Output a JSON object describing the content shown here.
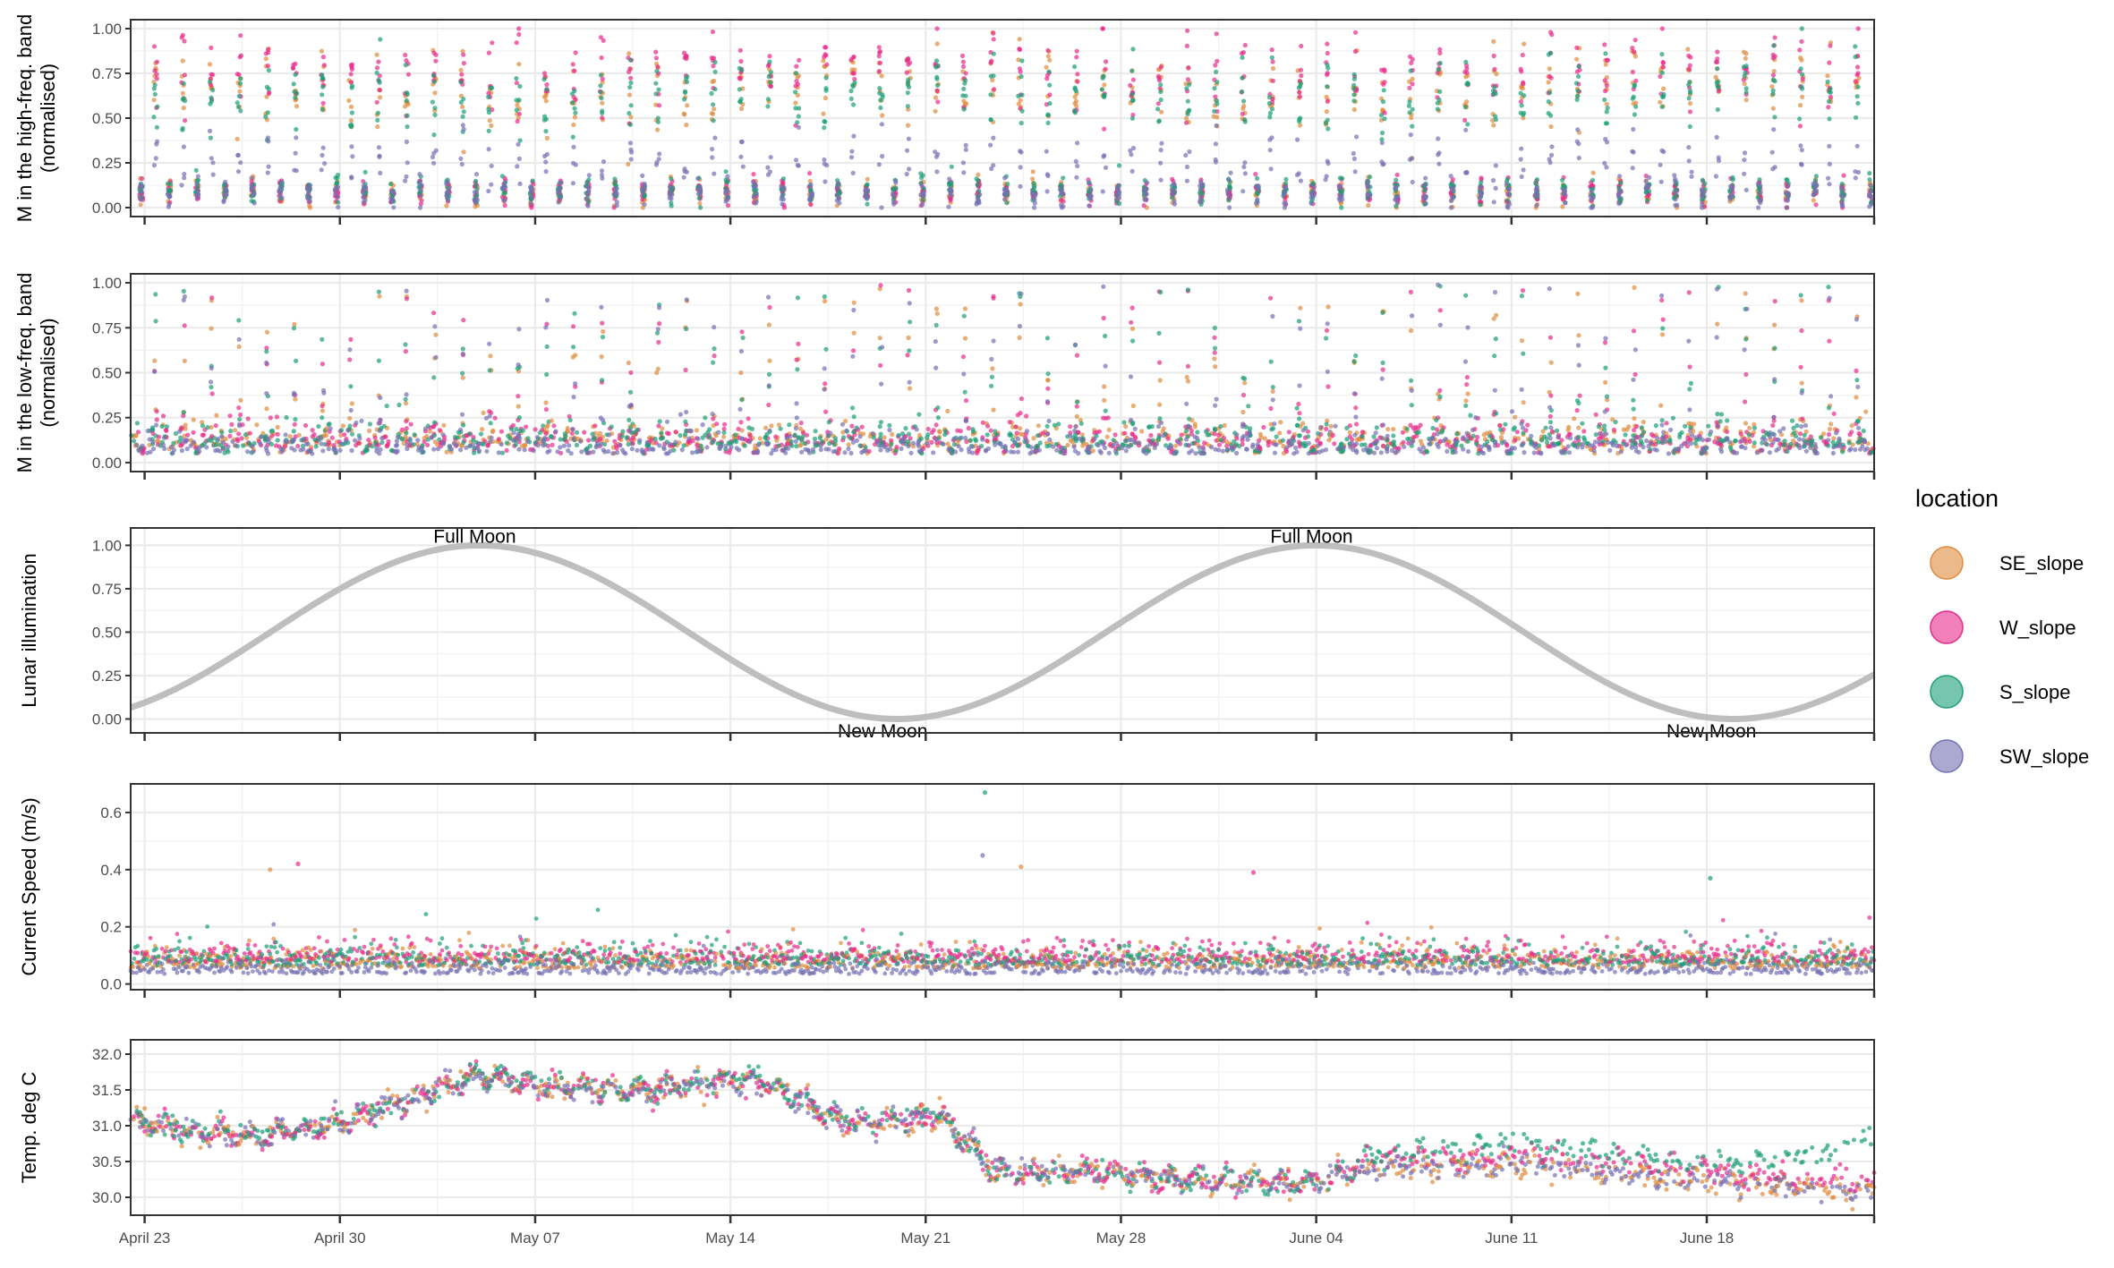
{
  "chart_data": {
    "type": "scatter",
    "x_axis": {
      "range": [
        "2024-04-22T12:00",
        "2024-06-24T00:00"
      ],
      "ticks": [
        {
          "label": "April 23",
          "date": "2024-04-23"
        },
        {
          "label": "April 30",
          "date": "2024-04-30"
        },
        {
          "label": "May 07",
          "date": "2024-05-07"
        },
        {
          "label": "May 14",
          "date": "2024-05-14"
        },
        {
          "label": "May 21",
          "date": "2024-05-21"
        },
        {
          "label": "May 28",
          "date": "2024-05-28"
        },
        {
          "label": "June 04",
          "date": "2024-06-04"
        },
        {
          "label": "June 11",
          "date": "2024-06-11"
        },
        {
          "label": "June 18",
          "date": "2024-06-18"
        }
      ]
    },
    "legend": {
      "title": "location",
      "position": "right",
      "entries": [
        {
          "name": "SE_slope",
          "color": "#E08A3C"
        },
        {
          "name": "W_slope",
          "color": "#E7298A"
        },
        {
          "name": "S_slope",
          "color": "#1B9E77"
        },
        {
          "name": "SW_slope",
          "color": "#7570B3"
        }
      ]
    },
    "panels": [
      {
        "id": "high",
        "ylabel": [
          "M in the high-freq. band",
          "(normalised)"
        ],
        "ylim": [
          -0.05,
          1.05
        ],
        "yticks": [
          {
            "value": 0,
            "label": "0.00"
          },
          {
            "value": 0.25,
            "label": "0.25"
          },
          {
            "value": 0.5,
            "label": "0.50"
          },
          {
            "value": 0.75,
            "label": "0.75"
          },
          {
            "value": 1,
            "label": "1.00"
          }
        ],
        "grid": true,
        "daily_pattern": {
          "night_values": {
            "SE_slope": 0.7,
            "W_slope": 0.78,
            "S_slope": 0.65,
            "SW_slope": 0.28
          },
          "day_values": {
            "SE_slope": 0.08,
            "W_slope": 0.09,
            "S_slope": 0.1,
            "SW_slope": 0.08
          }
        }
      },
      {
        "id": "low",
        "ylabel": [
          "M in the low-freq. band",
          "(normalised)"
        ],
        "ylim": [
          -0.05,
          1.05
        ],
        "yticks": [
          {
            "value": 0,
            "label": "0.00"
          },
          {
            "value": 0.25,
            "label": "0.25"
          },
          {
            "value": 0.5,
            "label": "0.50"
          },
          {
            "value": 0.75,
            "label": "0.75"
          },
          {
            "value": 1,
            "label": "1.00"
          }
        ],
        "grid": true,
        "typical_range": [
          0.0,
          0.3
        ],
        "spike_max": 1.0
      },
      {
        "id": "lunar",
        "ylabel": [
          "Lunar illumination"
        ],
        "ylim": [
          -0.08,
          1.1
        ],
        "yticks": [
          {
            "value": 0,
            "label": "0.00"
          },
          {
            "value": 0.25,
            "label": "0.25"
          },
          {
            "value": 0.5,
            "label": "0.50"
          },
          {
            "value": 0.75,
            "label": "0.75"
          },
          {
            "value": 1,
            "label": "1.00"
          }
        ],
        "grid": true,
        "line_color": "#BEBEBE",
        "full_moons": [
          "2024-05-05T00:00",
          "2024-06-03T23:00"
        ],
        "new_moons": [
          "2024-05-20T01:00",
          "2024-06-18T10:00"
        ],
        "annotations": [
          {
            "text": "Full Moon",
            "date": "2024-05-04T20:00",
            "value": 1.05
          },
          {
            "text": "Full Moon",
            "date": "2024-06-03T20:00",
            "value": 1.05
          },
          {
            "text": "New Moon",
            "date": "2024-05-19T11:00",
            "value": -0.07
          },
          {
            "text": "New Moon",
            "date": "2024-06-18T04:00",
            "value": -0.07
          }
        ]
      },
      {
        "id": "current",
        "ylabel": [
          "Current Speed (m/s)"
        ],
        "ylim": [
          -0.02,
          0.7
        ],
        "yticks": [
          {
            "value": 0,
            "label": "0.0"
          },
          {
            "value": 0.2,
            "label": "0.2"
          },
          {
            "value": 0.4,
            "label": "0.4"
          },
          {
            "value": 0.6,
            "label": "0.6"
          }
        ],
        "grid": true,
        "typical_means": {
          "SE_slope": 0.07,
          "W_slope": 0.09,
          "S_slope": 0.08,
          "SW_slope": 0.05
        },
        "outliers": [
          {
            "date": "2024-04-27T12:00",
            "value": 0.4
          },
          {
            "date": "2024-04-28T12:00",
            "value": 0.42
          },
          {
            "date": "2024-05-23T03:00",
            "value": 0.67
          },
          {
            "date": "2024-05-23T01:00",
            "value": 0.45
          },
          {
            "date": "2024-05-24T10:00",
            "value": 0.41
          },
          {
            "date": "2024-06-01T18:00",
            "value": 0.39
          },
          {
            "date": "2024-06-18T03:00",
            "value": 0.37
          }
        ]
      },
      {
        "id": "temp",
        "ylabel": [
          "Temp. deg C"
        ],
        "ylim": [
          29.75,
          32.2
        ],
        "yticks": [
          {
            "value": 30.0,
            "label": "30.0"
          },
          {
            "value": 30.5,
            "label": "30.5"
          },
          {
            "value": 31.0,
            "label": "31.0"
          },
          {
            "value": 31.5,
            "label": "31.5"
          },
          {
            "value": 32.0,
            "label": "32.0"
          }
        ],
        "grid": true,
        "trend": [
          {
            "date": "2024-04-22T12:00",
            "value": 31.1
          },
          {
            "date": "2024-04-25T00:00",
            "value": 30.9
          },
          {
            "date": "2024-04-27T00:00",
            "value": 30.85
          },
          {
            "date": "2024-04-30T00:00",
            "value": 31.05
          },
          {
            "date": "2024-05-02T00:00",
            "value": 31.3
          },
          {
            "date": "2024-05-05T00:00",
            "value": 31.7
          },
          {
            "date": "2024-05-07T00:00",
            "value": 31.55
          },
          {
            "date": "2024-05-11T00:00",
            "value": 31.5
          },
          {
            "date": "2024-05-15T00:00",
            "value": 31.65
          },
          {
            "date": "2024-05-18T00:00",
            "value": 31.05
          },
          {
            "date": "2024-05-20T00:00",
            "value": 31.05
          },
          {
            "date": "2024-05-21T12:00",
            "value": 31.15
          },
          {
            "date": "2024-05-23T12:00",
            "value": 30.35
          },
          {
            "date": "2024-05-28T00:00",
            "value": 30.35
          },
          {
            "date": "2024-05-30T00:00",
            "value": 30.25
          },
          {
            "date": "2024-06-04T00:00",
            "value": 30.2
          },
          {
            "date": "2024-06-06T00:00",
            "value": 30.45
          },
          {
            "date": "2024-06-11T00:00",
            "value": 30.55
          },
          {
            "date": "2024-06-14T00:00",
            "value": 30.45
          },
          {
            "date": "2024-06-18T00:00",
            "value": 30.3
          },
          {
            "date": "2024-06-24T00:00",
            "value": 30.15
          }
        ],
        "offsets_after": {
          "date": "2024-06-04T00:00",
          "values": {
            "SE_slope": -0.08,
            "W_slope": 0.05,
            "S_slope": 0.18,
            "SW_slope": -0.1
          }
        },
        "s_slope_end_value": 30.85
      }
    ]
  }
}
